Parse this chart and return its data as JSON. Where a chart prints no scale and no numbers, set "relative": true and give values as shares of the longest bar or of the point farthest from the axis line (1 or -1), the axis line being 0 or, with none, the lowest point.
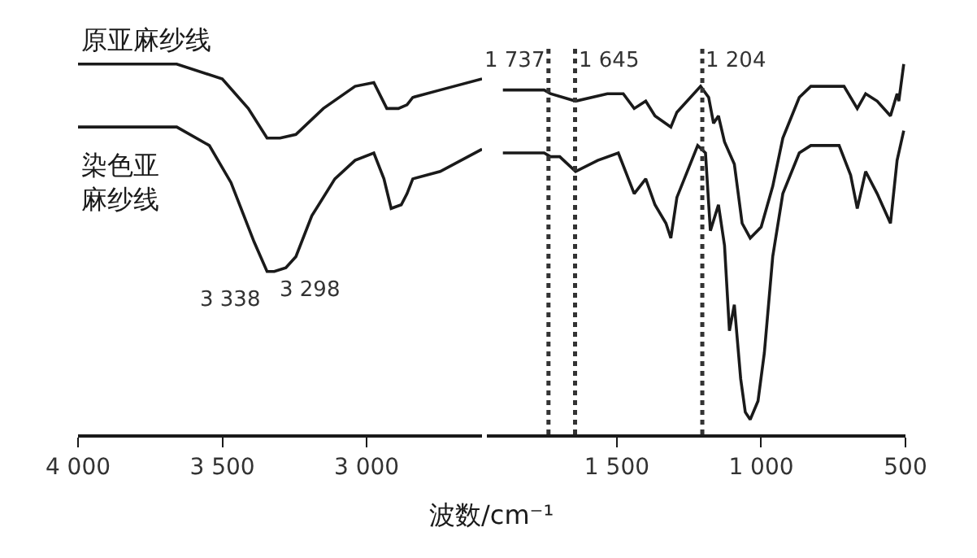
{
  "chart_data": [
    {
      "type": "line",
      "relative": true,
      "xlabel": "波数/cm⁻¹",
      "xlim": [
        4000,
        2600
      ],
      "xticks": [
        {
          "value": 4000,
          "label": "4 000"
        },
        {
          "value": 3500,
          "label": "3 500"
        },
        {
          "value": 3000,
          "label": "3 000"
        }
      ],
      "line_style": "solid",
      "marker": "none",
      "series": [
        {
          "name": "原亚麻纱线",
          "color": "#1a1a1a",
          "x": [
            4000,
            3658,
            3500,
            3410,
            3345,
            3300,
            3245,
            3150,
            3040,
            2975,
            2930,
            2890,
            2860,
            2840,
            2745,
            2600
          ],
          "values": [
            1.0,
            1.0,
            0.96,
            0.88,
            0.8,
            0.8,
            0.81,
            0.88,
            0.94,
            0.95,
            0.88,
            0.88,
            0.89,
            0.91,
            0.93,
            0.96
          ]
        },
        {
          "name": "染色亚麻纱线",
          "color": "#1a1a1a",
          "x": [
            4000,
            3658,
            3545,
            3470,
            3390,
            3345,
            3320,
            3280,
            3245,
            3190,
            3110,
            3040,
            2975,
            2940,
            2915,
            2880,
            2860,
            2840,
            2745,
            2600
          ],
          "values": [
            0.83,
            0.83,
            0.78,
            0.68,
            0.52,
            0.44,
            0.44,
            0.45,
            0.48,
            0.59,
            0.69,
            0.74,
            0.76,
            0.69,
            0.61,
            0.62,
            0.65,
            0.69,
            0.71,
            0.77
          ]
        }
      ],
      "annotations": [
        "3 338",
        "3 298"
      ]
    },
    {
      "type": "line",
      "relative": true,
      "xlim": [
        1950,
        500
      ],
      "xticks": [
        {
          "value": 1500,
          "label": "1 500"
        },
        {
          "value": 1000,
          "label": "1 000"
        },
        500
      ],
      "line_style": "solid",
      "marker": "none",
      "series": [
        {
          "color": "#1a1a1a",
          "x": [
            1895,
            1752,
            1730,
            1643,
            1533,
            1478,
            1440,
            1400,
            1368,
            1313,
            1292,
            1210,
            1182,
            1165,
            1148,
            1127,
            1093,
            1066,
            1038,
            1000,
            960,
            925,
            868,
            828,
            713,
            667,
            638,
            598,
            552,
            529,
            523,
            506
          ],
          "values": [
            0.93,
            0.93,
            0.92,
            0.9,
            0.92,
            0.92,
            0.88,
            0.9,
            0.86,
            0.83,
            0.87,
            0.94,
            0.91,
            0.84,
            0.86,
            0.79,
            0.73,
            0.57,
            0.53,
            0.56,
            0.67,
            0.8,
            0.91,
            0.94,
            0.94,
            0.88,
            0.92,
            0.9,
            0.86,
            0.92,
            0.9,
            1.0
          ]
        },
        {
          "color": "#1a1a1a",
          "x": [
            1895,
            1752,
            1730,
            1698,
            1643,
            1566,
            1495,
            1440,
            1400,
            1368,
            1330,
            1313,
            1292,
            1220,
            1193,
            1176,
            1148,
            1127,
            1110,
            1093,
            1071,
            1055,
            1038,
            1011,
            989,
            960,
            925,
            868,
            828,
            730,
            690,
            667,
            638,
            598,
            552,
            529,
            506
          ],
          "values": [
            0.76,
            0.76,
            0.75,
            0.75,
            0.71,
            0.74,
            0.76,
            0.65,
            0.69,
            0.62,
            0.57,
            0.53,
            0.64,
            0.78,
            0.76,
            0.55,
            0.62,
            0.51,
            0.28,
            0.35,
            0.15,
            0.06,
            0.04,
            0.09,
            0.22,
            0.48,
            0.65,
            0.76,
            0.78,
            0.78,
            0.7,
            0.61,
            0.71,
            0.65,
            0.57,
            0.74,
            0.82
          ]
        }
      ],
      "ref_lines": [
        {
          "axis": "x",
          "value": 1737,
          "label": "1 737",
          "color": "#333333",
          "line_style": "dotted"
        },
        {
          "axis": "x",
          "value": 1645,
          "label": "1 645",
          "color": "#333333",
          "line_style": "dotted"
        },
        {
          "axis": "x",
          "value": 1204,
          "label": "1 204",
          "color": "#333333",
          "line_style": "dotted"
        }
      ]
    }
  ]
}
